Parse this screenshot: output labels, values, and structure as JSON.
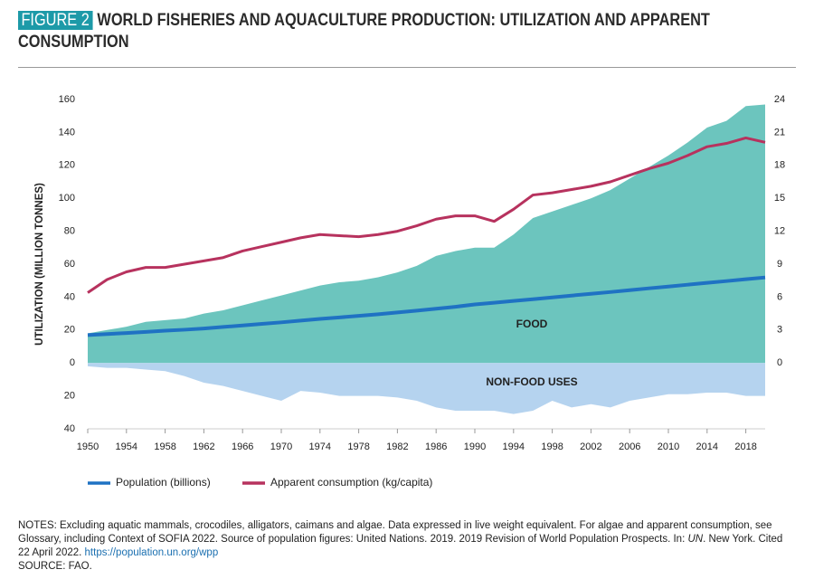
{
  "chart_data": {
    "type": "area-line",
    "figure_label": "FIGURE 2",
    "title": "WORLD FISHERIES AND AQUACULTURE PRODUCTION: UTILIZATION AND APPARENT CONSUMPTION",
    "y_label": "UTILIZATION (MILLION TONNES)",
    "x": [
      1950,
      1952,
      1954,
      1956,
      1958,
      1960,
      1962,
      1964,
      1966,
      1968,
      1970,
      1972,
      1974,
      1976,
      1978,
      1980,
      1982,
      1984,
      1986,
      1988,
      1990,
      1992,
      1994,
      1996,
      1998,
      2000,
      2002,
      2004,
      2006,
      2008,
      2010,
      2012,
      2014,
      2016,
      2018,
      2020
    ],
    "xlim": [
      1950,
      2020
    ],
    "xticks": [
      1950,
      1954,
      1958,
      1962,
      1966,
      1970,
      1974,
      1978,
      1982,
      1986,
      1990,
      1994,
      1998,
      2002,
      2006,
      2010,
      2014,
      2018
    ],
    "ylim": [
      -40,
      160
    ],
    "yticks": [
      {
        "value": -40,
        "label": "40"
      },
      {
        "value": -20,
        "label": "20"
      },
      0,
      20,
      40,
      60,
      80,
      100,
      120,
      140,
      160
    ],
    "y2lim": [
      -6,
      24
    ],
    "y2ticks": [
      0,
      3,
      6,
      9,
      12,
      15,
      18,
      21,
      24
    ],
    "legend": "bottom-left",
    "series": [
      {
        "name": "FOOD",
        "kind": "area",
        "color": "#6cc5be",
        "values": [
          18,
          20,
          22,
          25,
          26,
          27,
          30,
          32,
          35,
          38,
          41,
          44,
          47,
          49,
          50,
          52,
          55,
          59,
          65,
          68,
          70,
          70,
          78,
          88,
          92,
          96,
          100,
          105,
          112,
          119,
          126,
          134,
          143,
          147,
          156,
          157
        ]
      },
      {
        "name": "NON-FOOD USES",
        "kind": "area",
        "color": "#b5d3ef",
        "values": [
          -2,
          -3,
          -3,
          -4,
          -5,
          -8,
          -12,
          -14,
          -17,
          -20,
          -23,
          -17,
          -18,
          -20,
          -20,
          -20,
          -21,
          -23,
          -27,
          -29,
          -29,
          -29,
          -31,
          -29,
          -23,
          -27,
          -25,
          -27,
          -23,
          -21,
          -19,
          -19,
          -18,
          -18,
          -20,
          -20
        ]
      },
      {
        "name": "Population (billions)",
        "kind": "line",
        "axis": "y2",
        "color": "#1f72c3",
        "values": [
          2.54,
          2.63,
          2.73,
          2.83,
          2.94,
          3.03,
          3.14,
          3.28,
          3.42,
          3.56,
          3.7,
          3.86,
          4.01,
          4.15,
          4.29,
          4.44,
          4.6,
          4.77,
          4.94,
          5.12,
          5.33,
          5.49,
          5.65,
          5.81,
          5.97,
          6.14,
          6.3,
          6.46,
          6.63,
          6.8,
          6.96,
          7.13,
          7.3,
          7.46,
          7.63,
          7.79
        ]
      },
      {
        "name": "Apparent consumption (kg/capita)",
        "kind": "line",
        "axis": "y2",
        "color": "#b7325e",
        "values": [
          6.4,
          7.6,
          8.3,
          8.7,
          8.7,
          9.0,
          9.3,
          9.6,
          10.2,
          10.6,
          11.0,
          11.4,
          11.7,
          11.6,
          11.5,
          11.7,
          12.0,
          12.5,
          13.1,
          13.4,
          13.4,
          12.9,
          14.0,
          15.3,
          15.5,
          15.8,
          16.1,
          16.5,
          17.1,
          17.7,
          18.2,
          18.9,
          19.7,
          20.0,
          20.5,
          20.1
        ]
      }
    ],
    "notes": [
      "NOTES: Excluding aquatic mammals, crocodiles, alligators, caimans and algae. Data expressed in live weight equivalent. For algae and apparent consumption, see Glossary, including Context of SOFIA 2022. Source of population figures: United Nations. 2019. 2019 Revision of World Population Prospects. In: ",
      "UN",
      ". New York. Cited 22 April 2022. ",
      "https://population.un.org/wpp"
    ],
    "source": "SOURCE: FAO."
  }
}
